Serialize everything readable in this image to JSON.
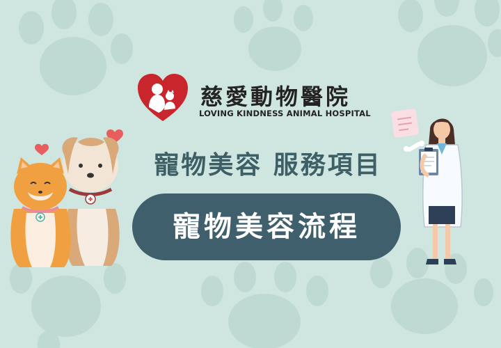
{
  "logo": {
    "name_zh": "慈愛動物醫院",
    "name_en": "LOVING KINDNESS ANIMAL HOSPITAL",
    "emblem": "heart-mother-child-pet-emblem"
  },
  "subtitle": "寵物美容  服務項目",
  "title": "寵物美容流程",
  "illustrations": {
    "left": [
      "orange-cat",
      "beige-dog",
      "floating-hearts"
    ],
    "right": [
      "veterinarian-with-clipboard",
      "notepad-icon",
      "bone-icon"
    ]
  },
  "colors": {
    "background": "#cfe5df",
    "paw_prints": "#bfdad3",
    "title_pill": "#3e5f6b",
    "subtitle_text": "#3f5f66",
    "logo_red": "#c9252c"
  }
}
